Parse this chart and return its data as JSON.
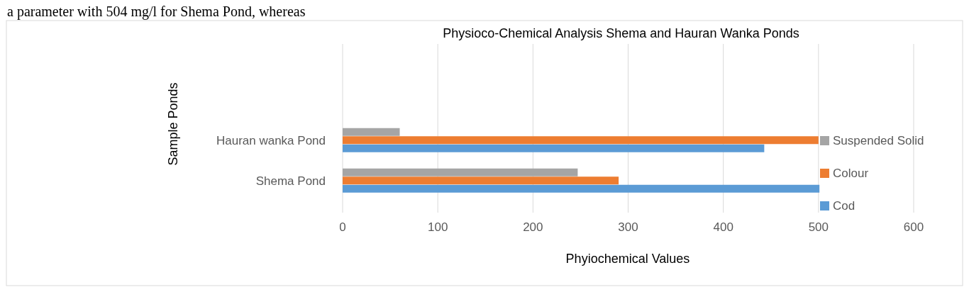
{
  "chart_data": {
    "type": "bar",
    "orientation": "horizontal",
    "title": "Physioco-Chemical  Analysis Shema and Hauran Wanka Ponds",
    "xlabel": "Phyiochemical  Values",
    "ylabel": "Sample  Ponds",
    "annotations": [
      "a parameter with 504 mg/l for Shema Pond, whereas"
    ],
    "categories": [
      "Hauran wanka  Pond",
      "Shema Pond"
    ],
    "series": [
      {
        "name": "Cod",
        "color": "#5b9bd5",
        "values": [
          443,
          501
        ]
      },
      {
        "name": "Colour",
        "color": "#ed7d31",
        "values": [
          500,
          290
        ]
      },
      {
        "name": "Suspended Solid",
        "color": "#a5a5a5",
        "values": [
          60,
          247
        ]
      }
    ],
    "xlim": [
      0,
      600
    ],
    "xticks": [
      0,
      100,
      200,
      300,
      400,
      500,
      600
    ],
    "grid": "x",
    "legend": "right"
  }
}
